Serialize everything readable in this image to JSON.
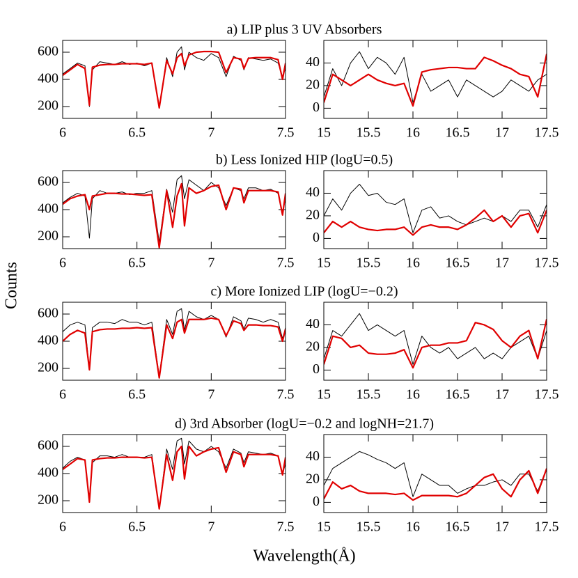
{
  "figure": {
    "ylabel": "Counts",
    "xlabel": "Wavelength(Å)"
  },
  "chart_data": [
    {
      "type": "line",
      "title": "a) LIP plus 3 UV Absorbers",
      "x": [
        6.0,
        6.05,
        6.1,
        6.15,
        6.18,
        6.2,
        6.25,
        6.3,
        6.35,
        6.4,
        6.45,
        6.5,
        6.55,
        6.6,
        6.65,
        6.7,
        6.74,
        6.77,
        6.8,
        6.82,
        6.85,
        6.9,
        6.95,
        7.0,
        7.05,
        7.1,
        7.15,
        7.2,
        7.22,
        7.25,
        7.3,
        7.35,
        7.4,
        7.45,
        7.48,
        7.5
      ],
      "series": [
        {
          "color": "#000000",
          "values": [
            440,
            480,
            520,
            500,
            200,
            470,
            530,
            520,
            510,
            530,
            510,
            520,
            500,
            520,
            190,
            560,
            420,
            600,
            640,
            470,
            600,
            560,
            540,
            590,
            560,
            420,
            570,
            540,
            470,
            560,
            550,
            540,
            550,
            520,
            420,
            480
          ]
        },
        {
          "color": "#e00000",
          "values": [
            430,
            470,
            510,
            480,
            210,
            490,
            505,
            510,
            510,
            515,
            515,
            515,
            510,
            520,
            190,
            540,
            440,
            560,
            590,
            500,
            580,
            600,
            605,
            605,
            600,
            450,
            560,
            550,
            480,
            555,
            560,
            560,
            560,
            545,
            400,
            520
          ]
        }
      ],
      "xlim": [
        6,
        7.5
      ],
      "xticks": [
        6,
        6.5,
        7,
        7.5
      ],
      "ylim": [
        113,
        687
      ],
      "yticks": [
        200,
        400,
        600
      ]
    },
    {
      "type": "line",
      "x": [
        15.0,
        15.1,
        15.2,
        15.3,
        15.4,
        15.5,
        15.6,
        15.7,
        15.8,
        15.9,
        16.0,
        16.1,
        16.2,
        16.3,
        16.4,
        16.5,
        16.6,
        16.7,
        16.8,
        16.9,
        17.0,
        17.1,
        17.2,
        17.3,
        17.4,
        17.5
      ],
      "series": [
        {
          "color": "#000000",
          "values": [
            10,
            35,
            20,
            40,
            50,
            35,
            45,
            40,
            30,
            45,
            5,
            30,
            15,
            20,
            25,
            10,
            25,
            20,
            15,
            10,
            15,
            25,
            20,
            15,
            25,
            30
          ]
        },
        {
          "color": "#e00000",
          "values": [
            5,
            30,
            25,
            20,
            25,
            30,
            25,
            22,
            20,
            22,
            2,
            32,
            34,
            35,
            36,
            36,
            35,
            35,
            45,
            42,
            38,
            35,
            30,
            28,
            10,
            48
          ]
        }
      ],
      "xlim": [
        15,
        17.5
      ],
      "xticks": [
        15,
        15.5,
        16,
        16.5,
        17,
        17.5
      ],
      "ylim": [
        -9,
        60
      ],
      "yticks": [
        0,
        20,
        40
      ]
    },
    {
      "type": "line",
      "title": "b)  Less Ionized HIP (logU=0.5)",
      "x": [
        6.0,
        6.05,
        6.1,
        6.15,
        6.18,
        6.2,
        6.25,
        6.3,
        6.35,
        6.4,
        6.45,
        6.5,
        6.55,
        6.6,
        6.65,
        6.7,
        6.74,
        6.77,
        6.8,
        6.82,
        6.85,
        6.9,
        6.95,
        7.0,
        7.05,
        7.1,
        7.15,
        7.2,
        7.22,
        7.25,
        7.3,
        7.35,
        7.4,
        7.45,
        7.48,
        7.5
      ],
      "series": [
        {
          "color": "#000000",
          "values": [
            450,
            490,
            520,
            500,
            190,
            480,
            540,
            520,
            520,
            530,
            510,
            520,
            520,
            540,
            160,
            550,
            380,
            620,
            650,
            480,
            620,
            580,
            540,
            600,
            560,
            430,
            560,
            540,
            480,
            560,
            560,
            540,
            550,
            520,
            380,
            480
          ]
        },
        {
          "color": "#e00000",
          "values": [
            440,
            480,
            500,
            510,
            400,
            500,
            510,
            520,
            520,
            515,
            515,
            510,
            505,
            510,
            120,
            540,
            270,
            500,
            590,
            280,
            560,
            520,
            540,
            570,
            580,
            400,
            560,
            550,
            450,
            540,
            540,
            540,
            540,
            530,
            360,
            520
          ]
        }
      ],
      "xlim": [
        6,
        7.5
      ],
      "xticks": [
        6,
        6.5,
        7,
        7.5
      ],
      "ylim": [
        113,
        687
      ],
      "yticks": [
        200,
        400,
        600
      ]
    },
    {
      "type": "line",
      "x": [
        15.0,
        15.1,
        15.2,
        15.3,
        15.4,
        15.5,
        15.6,
        15.7,
        15.8,
        15.9,
        16.0,
        16.1,
        16.2,
        16.3,
        16.4,
        16.5,
        16.6,
        16.7,
        16.8,
        16.9,
        17.0,
        17.1,
        17.2,
        17.3,
        17.4,
        17.5
      ],
      "series": [
        {
          "color": "#000000",
          "values": [
            20,
            35,
            25,
            40,
            48,
            38,
            40,
            32,
            30,
            35,
            5,
            25,
            28,
            18,
            20,
            15,
            12,
            15,
            18,
            15,
            20,
            15,
            25,
            25,
            10,
            30
          ]
        },
        {
          "color": "#e00000",
          "values": [
            5,
            15,
            10,
            15,
            10,
            8,
            7,
            8,
            8,
            10,
            3,
            10,
            12,
            10,
            10,
            8,
            12,
            18,
            25,
            15,
            20,
            10,
            20,
            22,
            5,
            25
          ]
        }
      ],
      "xlim": [
        15,
        17.5
      ],
      "xticks": [
        15,
        15.5,
        16,
        16.5,
        17,
        17.5
      ],
      "ylim": [
        -9,
        60
      ],
      "yticks": [
        0,
        20,
        40
      ]
    },
    {
      "type": "line",
      "title": "c) More Ionized LIP (logU=−0.2)",
      "x": [
        6.0,
        6.05,
        6.1,
        6.15,
        6.18,
        6.2,
        6.25,
        6.3,
        6.35,
        6.4,
        6.45,
        6.5,
        6.55,
        6.6,
        6.65,
        6.7,
        6.74,
        6.77,
        6.8,
        6.82,
        6.85,
        6.9,
        6.95,
        7.0,
        7.05,
        7.1,
        7.15,
        7.2,
        7.22,
        7.25,
        7.3,
        7.35,
        7.4,
        7.45,
        7.48,
        7.5
      ],
      "series": [
        {
          "color": "#000000",
          "values": [
            470,
            520,
            540,
            520,
            190,
            500,
            540,
            540,
            530,
            560,
            540,
            540,
            520,
            540,
            140,
            560,
            450,
            620,
            640,
            480,
            620,
            580,
            560,
            590,
            560,
            430,
            580,
            550,
            490,
            570,
            560,
            540,
            560,
            540,
            420,
            500
          ]
        },
        {
          "color": "#e00000",
          "values": [
            400,
            450,
            480,
            460,
            190,
            470,
            485,
            490,
            490,
            495,
            495,
            500,
            495,
            500,
            130,
            520,
            420,
            540,
            560,
            460,
            560,
            560,
            560,
            570,
            560,
            440,
            550,
            530,
            480,
            520,
            520,
            515,
            515,
            505,
            400,
            490
          ]
        }
      ],
      "xlim": [
        6,
        7.5
      ],
      "xticks": [
        6,
        6.5,
        7,
        7.5
      ],
      "ylim": [
        113,
        687
      ],
      "yticks": [
        200,
        400,
        600
      ]
    },
    {
      "type": "line",
      "x": [
        15.0,
        15.1,
        15.2,
        15.3,
        15.4,
        15.5,
        15.6,
        15.7,
        15.8,
        15.9,
        16.0,
        16.1,
        16.2,
        16.3,
        16.4,
        16.5,
        16.6,
        16.7,
        16.8,
        16.9,
        17.0,
        17.1,
        17.2,
        17.3,
        17.4,
        17.5
      ],
      "series": [
        {
          "color": "#000000",
          "values": [
            10,
            35,
            30,
            40,
            50,
            35,
            40,
            35,
            30,
            35,
            5,
            30,
            20,
            15,
            20,
            10,
            15,
            20,
            10,
            15,
            10,
            20,
            25,
            30,
            10,
            35
          ]
        },
        {
          "color": "#e00000",
          "values": [
            5,
            30,
            28,
            20,
            22,
            15,
            14,
            14,
            15,
            18,
            2,
            20,
            22,
            22,
            24,
            24,
            26,
            42,
            40,
            36,
            26,
            20,
            30,
            35,
            10,
            45
          ]
        }
      ],
      "xlim": [
        15,
        17.5
      ],
      "xticks": [
        15,
        15.5,
        16,
        16.5,
        17,
        17.5
      ],
      "ylim": [
        -9,
        60
      ],
      "yticks": [
        0,
        20,
        40
      ]
    },
    {
      "type": "line",
      "title": "d) 3rd Absorber (logU=−0.2 and logNH=21.7)",
      "x": [
        6.0,
        6.05,
        6.1,
        6.15,
        6.18,
        6.2,
        6.25,
        6.3,
        6.35,
        6.4,
        6.45,
        6.5,
        6.55,
        6.6,
        6.65,
        6.7,
        6.74,
        6.77,
        6.8,
        6.82,
        6.85,
        6.9,
        6.95,
        7.0,
        7.05,
        7.1,
        7.15,
        7.2,
        7.22,
        7.25,
        7.3,
        7.35,
        7.4,
        7.45,
        7.48,
        7.5
      ],
      "series": [
        {
          "color": "#000000",
          "values": [
            440,
            490,
            520,
            500,
            200,
            480,
            530,
            530,
            520,
            540,
            520,
            520,
            520,
            540,
            140,
            580,
            430,
            640,
            660,
            470,
            640,
            580,
            560,
            600,
            560,
            440,
            580,
            550,
            480,
            560,
            550,
            540,
            550,
            530,
            400,
            470
          ]
        },
        {
          "color": "#e00000",
          "values": [
            430,
            470,
            510,
            500,
            190,
            500,
            510,
            515,
            515,
            520,
            520,
            520,
            515,
            520,
            140,
            540,
            350,
            560,
            600,
            360,
            600,
            530,
            560,
            580,
            590,
            410,
            560,
            540,
            450,
            540,
            540,
            540,
            540,
            530,
            390,
            520
          ]
        }
      ],
      "xlim": [
        6,
        7.5
      ],
      "xticks": [
        6,
        6.5,
        7,
        7.5
      ],
      "ylim": [
        113,
        687
      ],
      "yticks": [
        200,
        400,
        600
      ]
    },
    {
      "type": "line",
      "x": [
        15.0,
        15.1,
        15.2,
        15.3,
        15.4,
        15.5,
        15.6,
        15.7,
        15.8,
        15.9,
        16.0,
        16.1,
        16.2,
        16.3,
        16.4,
        16.5,
        16.6,
        16.7,
        16.8,
        16.9,
        17.0,
        17.1,
        17.2,
        17.3,
        17.4,
        17.5
      ],
      "series": [
        {
          "color": "#000000",
          "values": [
            15,
            30,
            35,
            40,
            45,
            42,
            38,
            35,
            30,
            35,
            5,
            25,
            20,
            15,
            15,
            8,
            12,
            15,
            15,
            18,
            20,
            15,
            25,
            25,
            10,
            30
          ]
        },
        {
          "color": "#e00000",
          "values": [
            3,
            18,
            12,
            15,
            10,
            8,
            8,
            8,
            7,
            8,
            2,
            6,
            6,
            6,
            6,
            5,
            8,
            15,
            22,
            25,
            12,
            5,
            20,
            28,
            8,
            30
          ]
        }
      ],
      "xlim": [
        15,
        17.5
      ],
      "xticks": [
        15,
        15.5,
        16,
        16.5,
        17,
        17.5
      ],
      "ylim": [
        -9,
        60
      ],
      "yticks": [
        0,
        20,
        40
      ]
    }
  ]
}
